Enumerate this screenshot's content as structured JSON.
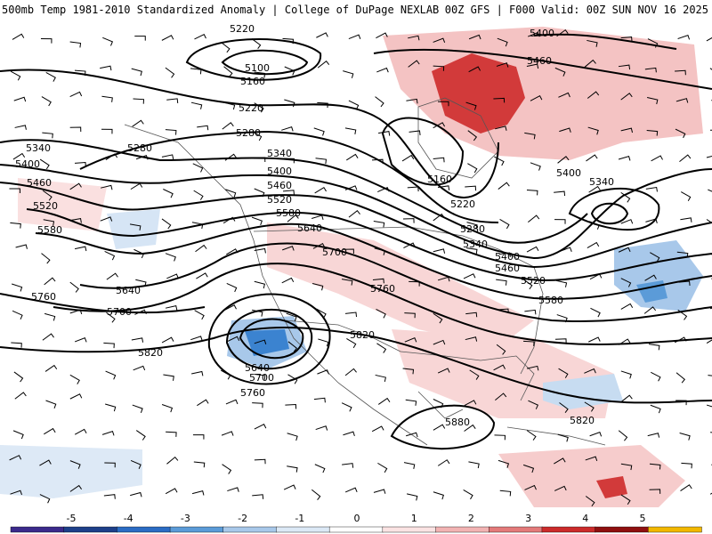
{
  "header": {
    "title_left": "500mb Temp 1981-2010 Standardized Anomaly | College of DuPage NEXLAB",
    "title_right": "00Z GFS | F000 Valid: 00Z SUN NOV 16 2025"
  },
  "contour_labels": [
    "5220",
    "5100",
    "5160",
    "5220",
    "5280",
    "5340",
    "5400",
    "5460",
    "5520",
    "5580",
    "5640",
    "5700",
    "5760",
    "5820",
    "5280",
    "5340",
    "5400",
    "5460",
    "5520",
    "5580",
    "5640",
    "5700",
    "5760",
    "5820",
    "5160",
    "5220",
    "5280",
    "5340",
    "5400",
    "5460",
    "5520",
    "5580",
    "5640",
    "5700",
    "5760",
    "5820",
    "5880",
    "5400",
    "5460",
    "5340",
    "5400"
  ],
  "colorbar": {
    "ticks": [
      "-5",
      "-4",
      "-3",
      "-2",
      "-1",
      "0",
      "1",
      "2",
      "3",
      "4",
      "5"
    ],
    "colors": [
      "#3b2a8c",
      "#1d3f8a",
      "#2b6cc4",
      "#5b9bd8",
      "#a8c8ea",
      "#dce9f6",
      "#ffffff",
      "#fbe3e3",
      "#f2b3b3",
      "#e47a7a",
      "#cc2b2b",
      "#8f1010",
      "#f2b800"
    ]
  },
  "colors": {
    "land_outline": "#555555",
    "contour": "#000000",
    "warm_strong": "#cc2b2b",
    "warm_light": "#f4c3c3",
    "cold_strong": "#2b6cc4",
    "cold_light": "#c7dcf1"
  }
}
